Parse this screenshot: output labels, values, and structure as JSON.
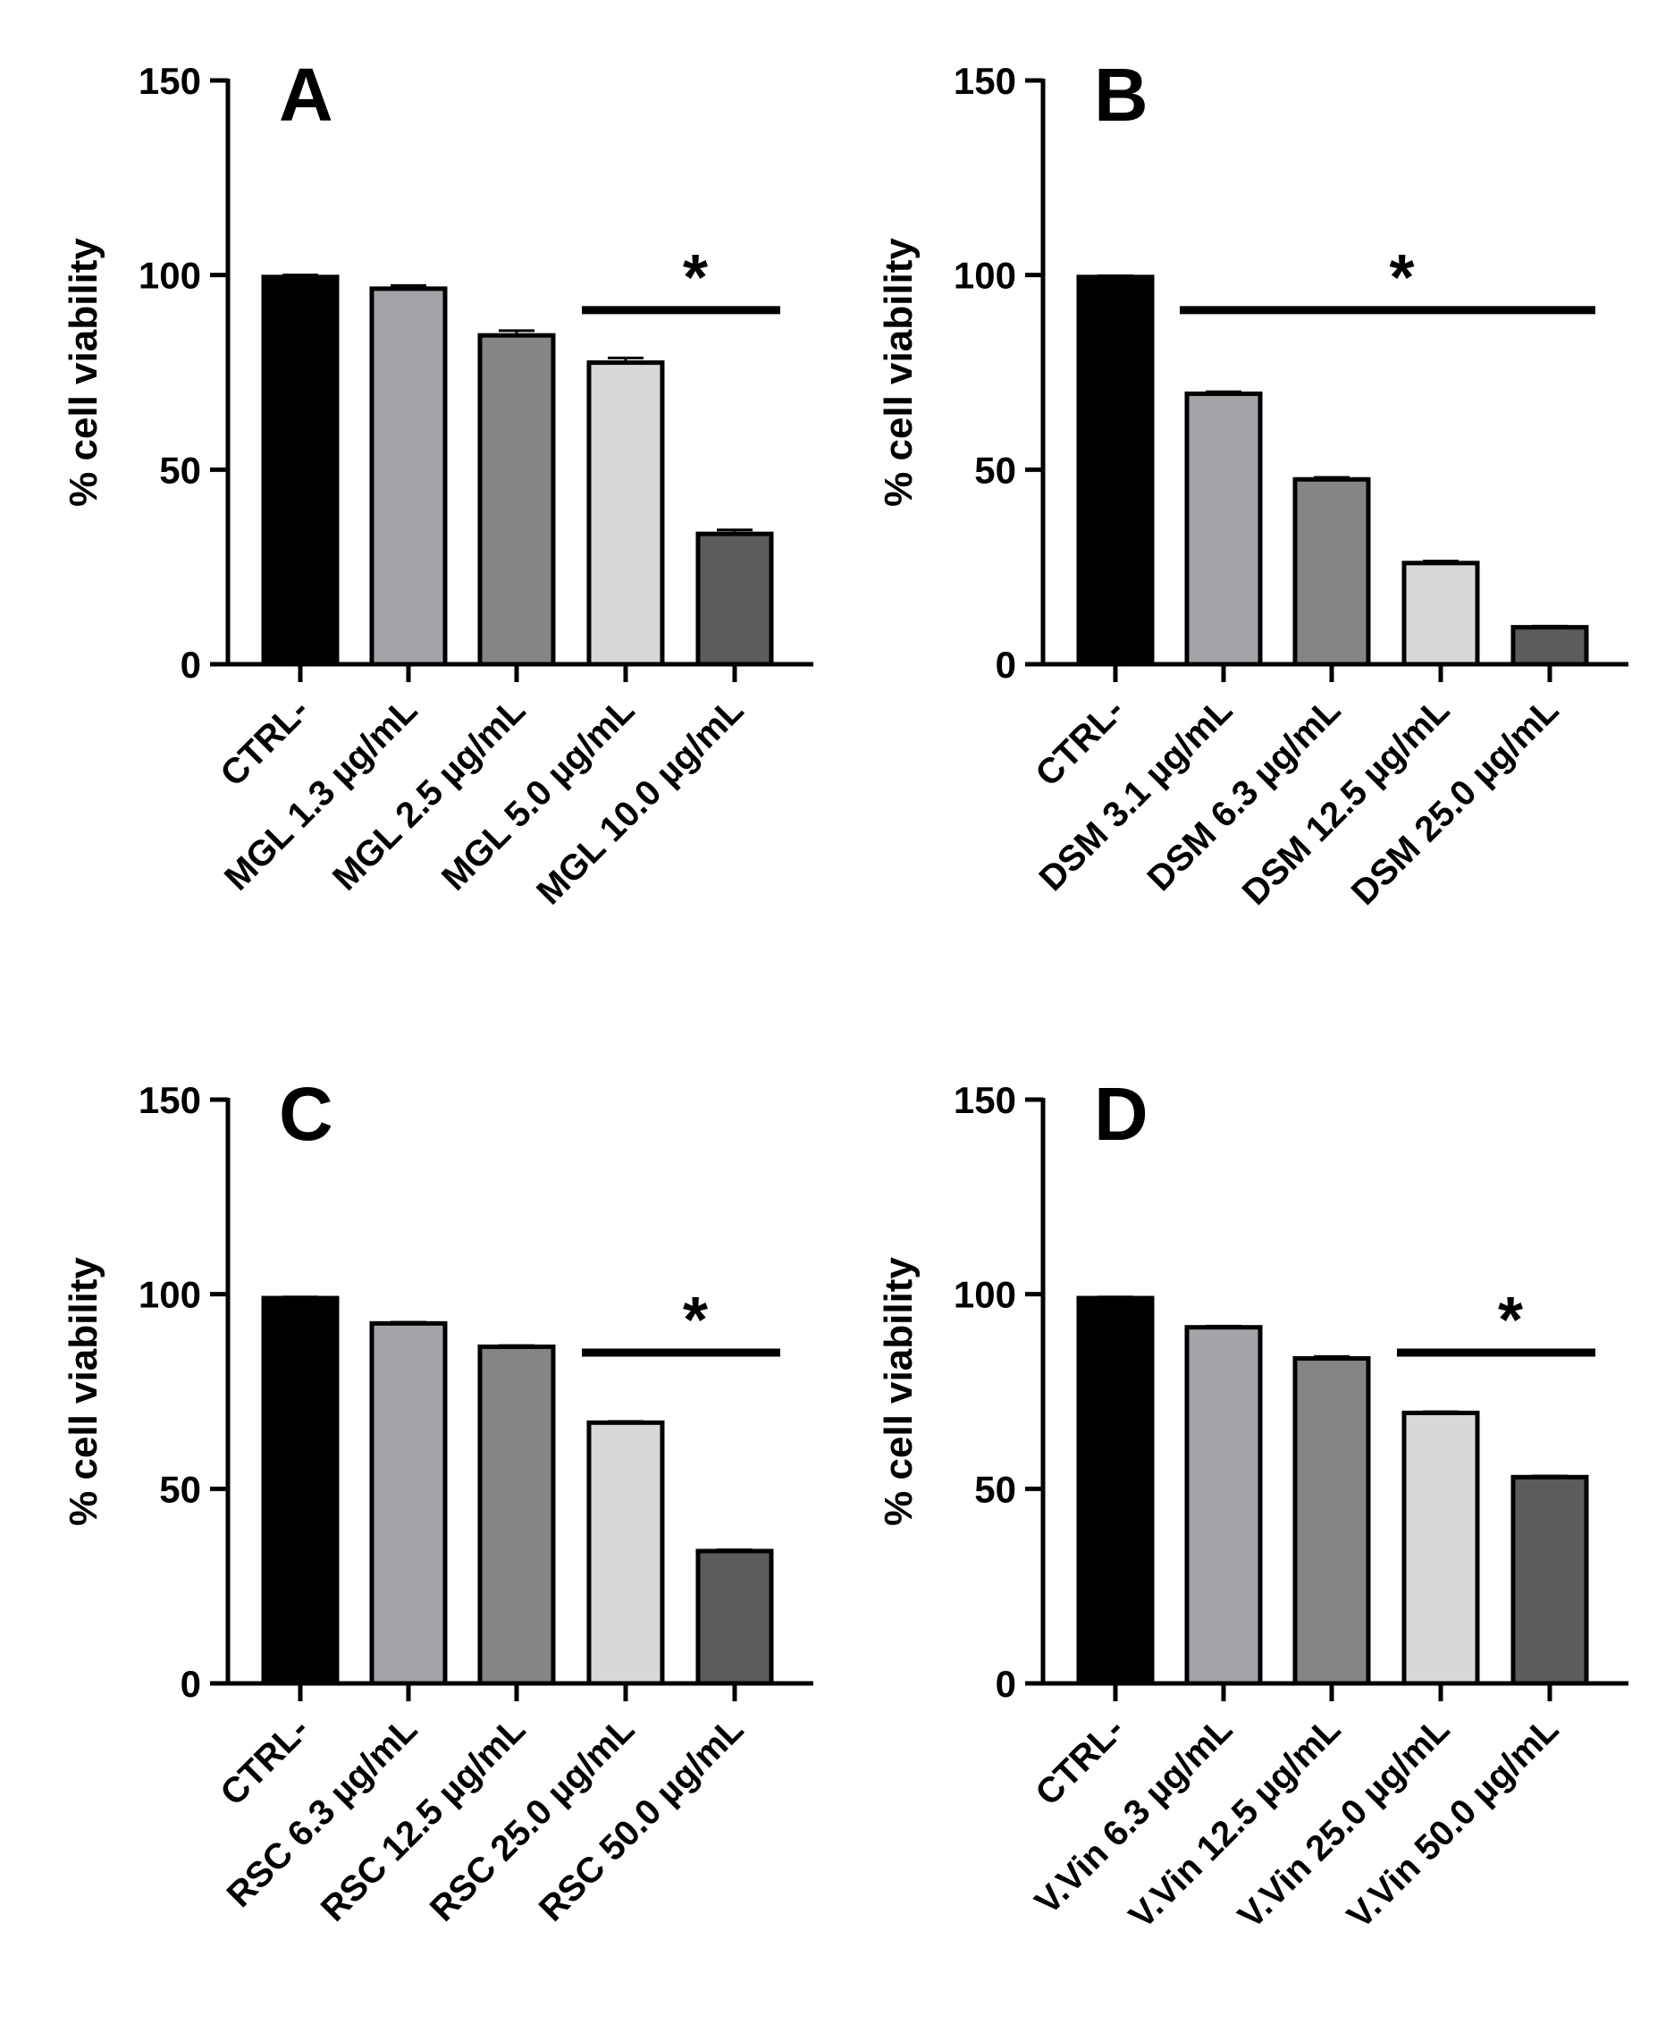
{
  "chart_data": [
    {
      "type": "bar",
      "panel_label": "A",
      "title": "",
      "xlabel": "",
      "ylabel": "% cell viability",
      "ylim": [
        0,
        150
      ],
      "yticks": [
        "0",
        "50",
        "100",
        "150"
      ],
      "categories": [
        "CTRL-",
        "MGL 1.3 µg/mL",
        "MGL 2.5 µg/mL",
        "MGL 5.0 µg/mL",
        "MGL 10.0 µg/mL"
      ],
      "values": [
        99.5,
        96.5,
        84.5,
        77.5,
        33.5
      ],
      "errors": [
        0.5,
        0.8,
        1.2,
        1.2,
        1.0
      ],
      "colors": [
        "#000000",
        "#a4a4a8",
        "#858585",
        "#d8d8d8",
        "#5c5c5c"
      ],
      "significance": {
        "label": "*",
        "from_index": 3,
        "to_index": 4,
        "y": 91
      }
    },
    {
      "type": "bar",
      "panel_label": "B",
      "title": "",
      "xlabel": "",
      "ylabel": "% cell viability",
      "ylim": [
        0,
        150
      ],
      "yticks": [
        "0",
        "50",
        "100",
        "150"
      ],
      "categories": [
        "CTRL-",
        "DSM 3.1 µg/mL",
        "DSM 6.3 µg/mL",
        "DSM 12.5 µg/mL",
        "DSM 25.0 µg/mL"
      ],
      "values": [
        99.5,
        69.5,
        47.5,
        26,
        9.5
      ],
      "errors": [
        0.3,
        0.5,
        0.5,
        0.5,
        0.3
      ],
      "colors": [
        "#000000",
        "#a4a4a8",
        "#858585",
        "#d8d8d8",
        "#5c5c5c"
      ],
      "significance": {
        "label": "*",
        "from_index": 1,
        "to_index": 4,
        "y": 91
      }
    },
    {
      "type": "bar",
      "panel_label": "C",
      "title": "",
      "xlabel": "",
      "ylabel": "% cell viability",
      "ylim": [
        0,
        150
      ],
      "yticks": [
        "0",
        "50",
        "100",
        "150"
      ],
      "categories": [
        "CTRL-",
        "RSC 6.3 µg/mL",
        "RSC 12.5 µg/mL",
        "RSC 25.0 µg/mL",
        "RSC 50.0 µg/mL"
      ],
      "values": [
        99,
        92.5,
        86.5,
        67,
        34
      ],
      "errors": [
        0.3,
        0.3,
        0.3,
        0.3,
        0.3
      ],
      "colors": [
        "#000000",
        "#a4a4a8",
        "#858585",
        "#d8d8d8",
        "#5c5c5c"
      ],
      "significance": {
        "label": "*",
        "from_index": 3,
        "to_index": 4,
        "y": 85
      }
    },
    {
      "type": "bar",
      "panel_label": "D",
      "title": "",
      "xlabel": "",
      "ylabel": "% cell viability",
      "ylim": [
        0,
        150
      ],
      "yticks": [
        "0",
        "50",
        "100",
        "150"
      ],
      "categories": [
        "CTRL-",
        "V.Vin 6.3 µg/mL",
        "V.Vin 12.5 µg/mL",
        "V.Vin 25.0 µg/mL",
        "V.Vin 50.0 µg/mL"
      ],
      "values": [
        99,
        91.5,
        83.5,
        69.5,
        53
      ],
      "errors": [
        0.3,
        0.3,
        0.5,
        0.3,
        0.3
      ],
      "colors": [
        "#000000",
        "#a4a4a8",
        "#858585",
        "#d8d8d8",
        "#5c5c5c"
      ],
      "significance": {
        "label": "*",
        "from_index": 3,
        "to_index": 4,
        "y": 85
      }
    }
  ]
}
